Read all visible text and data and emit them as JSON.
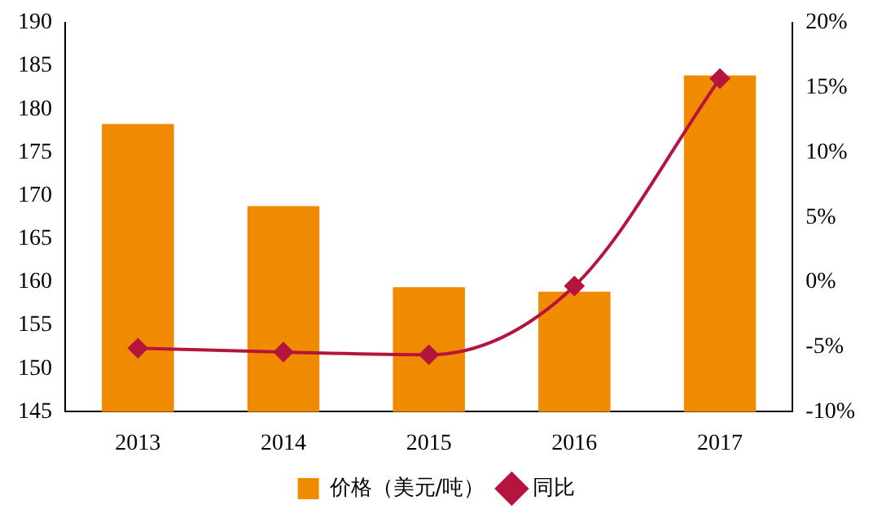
{
  "chart_data": {
    "type": "bar",
    "categories": [
      "2013",
      "2014",
      "2015",
      "2016",
      "2017"
    ],
    "series": [
      {
        "name": "价格（美元/吨）",
        "color": "#f08a00",
        "values": [
          178.3,
          168.8,
          159.4,
          158.9,
          183.9
        ]
      },
      {
        "name": "同比",
        "type": "line",
        "axis": "y2",
        "color": "#b5143c",
        "marker": "diamond",
        "values": [
          -5.1,
          -5.4,
          -5.6,
          -0.3,
          15.7
        ]
      }
    ],
    "ylim": [
      145,
      190
    ],
    "yticks": [
      145,
      150,
      155,
      160,
      165,
      170,
      175,
      180,
      185,
      190
    ],
    "y2lim": [
      -10,
      20
    ],
    "y2ticks": [
      {
        "value": -10,
        "label": "-10%"
      },
      {
        "value": -5,
        "label": "-5%"
      },
      {
        "value": 0,
        "label": "0%"
      },
      {
        "value": 5,
        "label": "5%"
      },
      {
        "value": 10,
        "label": "10%"
      },
      {
        "value": 15,
        "label": "15%"
      },
      {
        "value": 20,
        "label": "20%"
      }
    ],
    "grid": false,
    "legend": "bottom"
  }
}
